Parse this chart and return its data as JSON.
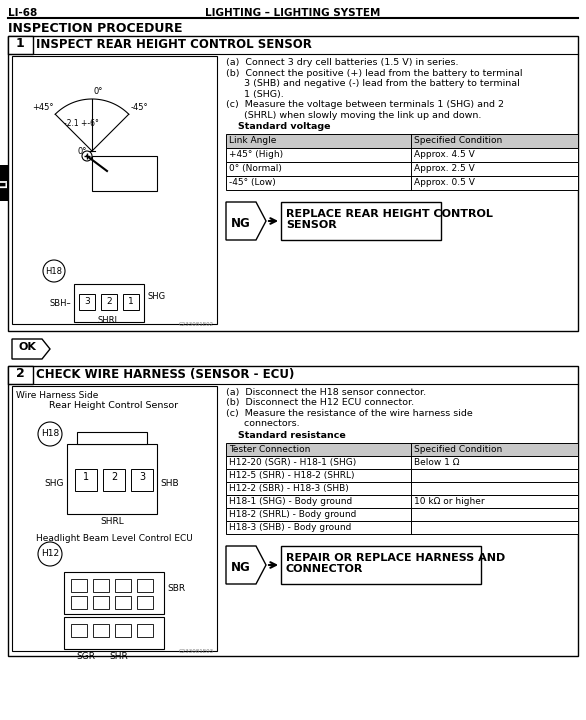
{
  "page_num": "LI-68",
  "header_center": "LIGHTING – LIGHTING SYSTEM",
  "section_title": "INSPECTION PROCEDURE",
  "step1_title": "INSPECT REAR HEIGHT CONTROL SENSOR",
  "step1_instructions": [
    "(a)  Connect 3 dry cell batteries (1.5 V) in series.",
    "(b)  Connect the positive (+) lead from the battery to terminal",
    "      3 (SHB) and negative (-) lead from the battery to terminal",
    "      1 (SHG).",
    "(c)  Measure the voltage between terminals 1 (SHG) and 2",
    "      (SHRL) when slowly moving the link up and down."
  ],
  "step1_std_voltage": "Standard voltage",
  "step1_table_headers": [
    "Link Angle",
    "Specified Condition"
  ],
  "step1_table_rows": [
    [
      "+45° (High)",
      "Approx. 4.5 V"
    ],
    [
      "0° (Normal)",
      "Approx. 2.5 V"
    ],
    [
      "-45° (Low)",
      "Approx. 0.5 V"
    ]
  ],
  "step1_ng_text1": "REPLACE REAR HEIGHT CONTROL",
  "step1_ng_text2": "SENSOR",
  "ok_label": "OK",
  "step2_title": "CHECK WIRE HARNESS (SENSOR - ECU)",
  "step2_instructions": [
    "(a)  Disconnect the H18 sensor connector.",
    "(b)  Disconnect the H12 ECU connector.",
    "(c)  Measure the resistance of the wire harness side",
    "      connectors."
  ],
  "step2_std_resistance": "Standard resistance",
  "step2_table_headers": [
    "Tester Connection",
    "Specified Condition"
  ],
  "step2_table_rows": [
    [
      "H12-20 (SGR) - H18-1 (SHG)",
      "Below 1 Ω"
    ],
    [
      "H12-5 (SHR) - H18-2 (SHRL)",
      ""
    ],
    [
      "H12-2 (SBR) - H18-3 (SHB)",
      ""
    ],
    [
      "H18-1 (SHG) - Body ground",
      "10 kΩ or higher"
    ],
    [
      "H18-2 (SHRL) - Body ground",
      ""
    ],
    [
      "H18-3 (SHB) - Body ground",
      ""
    ]
  ],
  "step2_ng_text1": "REPAIR OR REPLACE HARNESS AND",
  "step2_ng_text2": "CONNECTOR",
  "wire_harness_label": "Wire Harness Side",
  "rear_sensor_label": "Rear Height Control Sensor",
  "headlight_ecu_label": "Headlight Beam Level Control ECU",
  "bg_color": "#ffffff",
  "table_header_bg": "#c8c8c8",
  "li_tab_color": "#000000",
  "img1_code": "C233081E02",
  "img2_code": "C233081E03"
}
